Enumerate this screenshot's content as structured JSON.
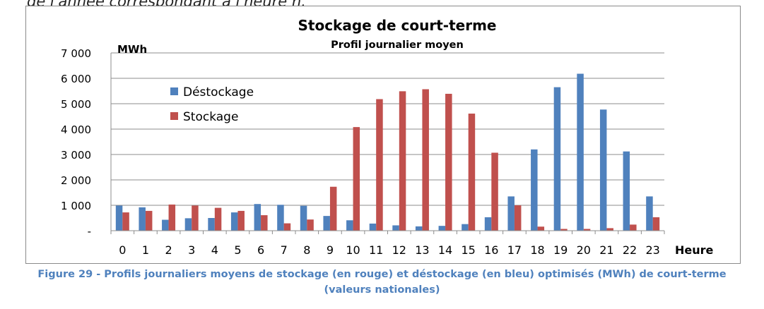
{
  "top_text": "de l'année correspondant à l'heure h.",
  "caption": {
    "line1": "Figure 29 - Profils journaliers moyens de stockage (en rouge) et déstockage (en bleu) optimisés (MWh) de court-terme",
    "line2": "(valeurs nationales)"
  },
  "chart_data": {
    "type": "bar",
    "title": "Stockage de court-terme",
    "subtitle": "Profil journalier moyen",
    "ylabel": "MWh",
    "xlabel": "Heure",
    "ylim": [
      0,
      7000
    ],
    "yticks": [
      0,
      1000,
      2000,
      3000,
      4000,
      5000,
      6000,
      7000
    ],
    "ytick_labels": [
      "-",
      "1 000",
      "2 000",
      "3 000",
      "4 000",
      "5 000",
      "6 000",
      "7 000"
    ],
    "grid": true,
    "legend_position": "upper-left",
    "categories": [
      "0",
      "1",
      "2",
      "3",
      "4",
      "5",
      "6",
      "7",
      "8",
      "9",
      "10",
      "11",
      "12",
      "13",
      "14",
      "15",
      "16",
      "17",
      "18",
      "19",
      "20",
      "21",
      "22",
      "23"
    ],
    "series": [
      {
        "name": "Déstockage",
        "color": "#4f81bd",
        "values": [
          990,
          920,
          430,
          490,
          500,
          720,
          1050,
          1020,
          980,
          580,
          410,
          280,
          210,
          170,
          190,
          260,
          530,
          1350,
          3200,
          5650,
          6180,
          4770,
          3120,
          1350
        ]
      },
      {
        "name": "Stockage",
        "color": "#c0504d",
        "values": [
          720,
          780,
          1030,
          990,
          900,
          780,
          610,
          290,
          440,
          1730,
          4080,
          5180,
          5490,
          5570,
          5390,
          4610,
          3070,
          1000,
          160,
          70,
          70,
          100,
          240,
          530
        ]
      }
    ]
  }
}
